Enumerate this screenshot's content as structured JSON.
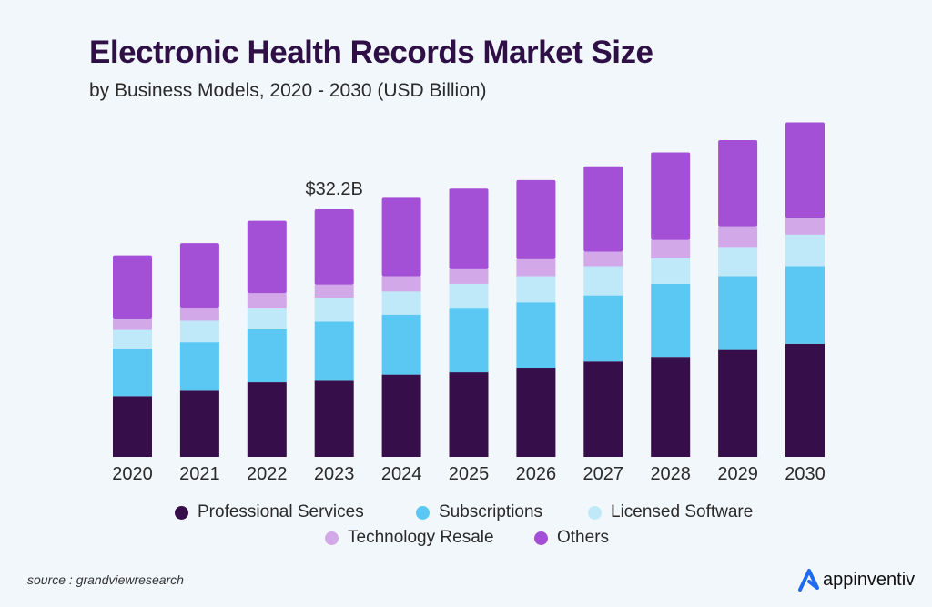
{
  "chart_data": {
    "type": "bar",
    "stacked": true,
    "title": "Electronic Health Records Market Size",
    "subtitle": "by Business Models, 2020 - 2030 (USD Billion)",
    "categories": [
      "2020",
      "2021",
      "2022",
      "2023",
      "2024",
      "2025",
      "2026",
      "2027",
      "2028",
      "2029",
      "2030"
    ],
    "series": [
      {
        "name": "Professional Services",
        "color": "#360f4a",
        "values": [
          7.9,
          8.6,
          9.7,
          9.9,
          10.7,
          11.0,
          11.6,
          12.4,
          13.0,
          13.9,
          14.7
        ]
      },
      {
        "name": "Subscriptions",
        "color": "#5bc8f3",
        "values": [
          6.2,
          6.3,
          6.9,
          7.7,
          7.8,
          8.4,
          8.5,
          8.6,
          9.5,
          9.6,
          10.1
        ]
      },
      {
        "name": "Licensed Software",
        "color": "#bfe9f9",
        "values": [
          2.4,
          2.8,
          2.8,
          3.1,
          3.0,
          3.1,
          3.4,
          3.8,
          3.3,
          3.8,
          4.1
        ]
      },
      {
        "name": "Technology Resale",
        "color": "#d3a8e8",
        "values": [
          1.5,
          1.7,
          1.9,
          1.7,
          2.0,
          1.9,
          2.2,
          1.9,
          2.4,
          2.7,
          2.2
        ]
      },
      {
        "name": "Others",
        "color": "#a34fd6",
        "values": [
          8.2,
          8.4,
          9.4,
          9.8,
          10.2,
          10.5,
          10.3,
          11.1,
          11.4,
          11.2,
          12.4
        ]
      }
    ],
    "annotations": [
      {
        "category": "2023",
        "text": "$32.2B"
      }
    ],
    "xlabel": "",
    "ylabel": "",
    "yaxis_visible": false,
    "grid": false,
    "legend_position": "bottom"
  },
  "source": "source : grandviewresearch",
  "logo_text": "appinventiv",
  "brand_color": "#1f6bf0"
}
